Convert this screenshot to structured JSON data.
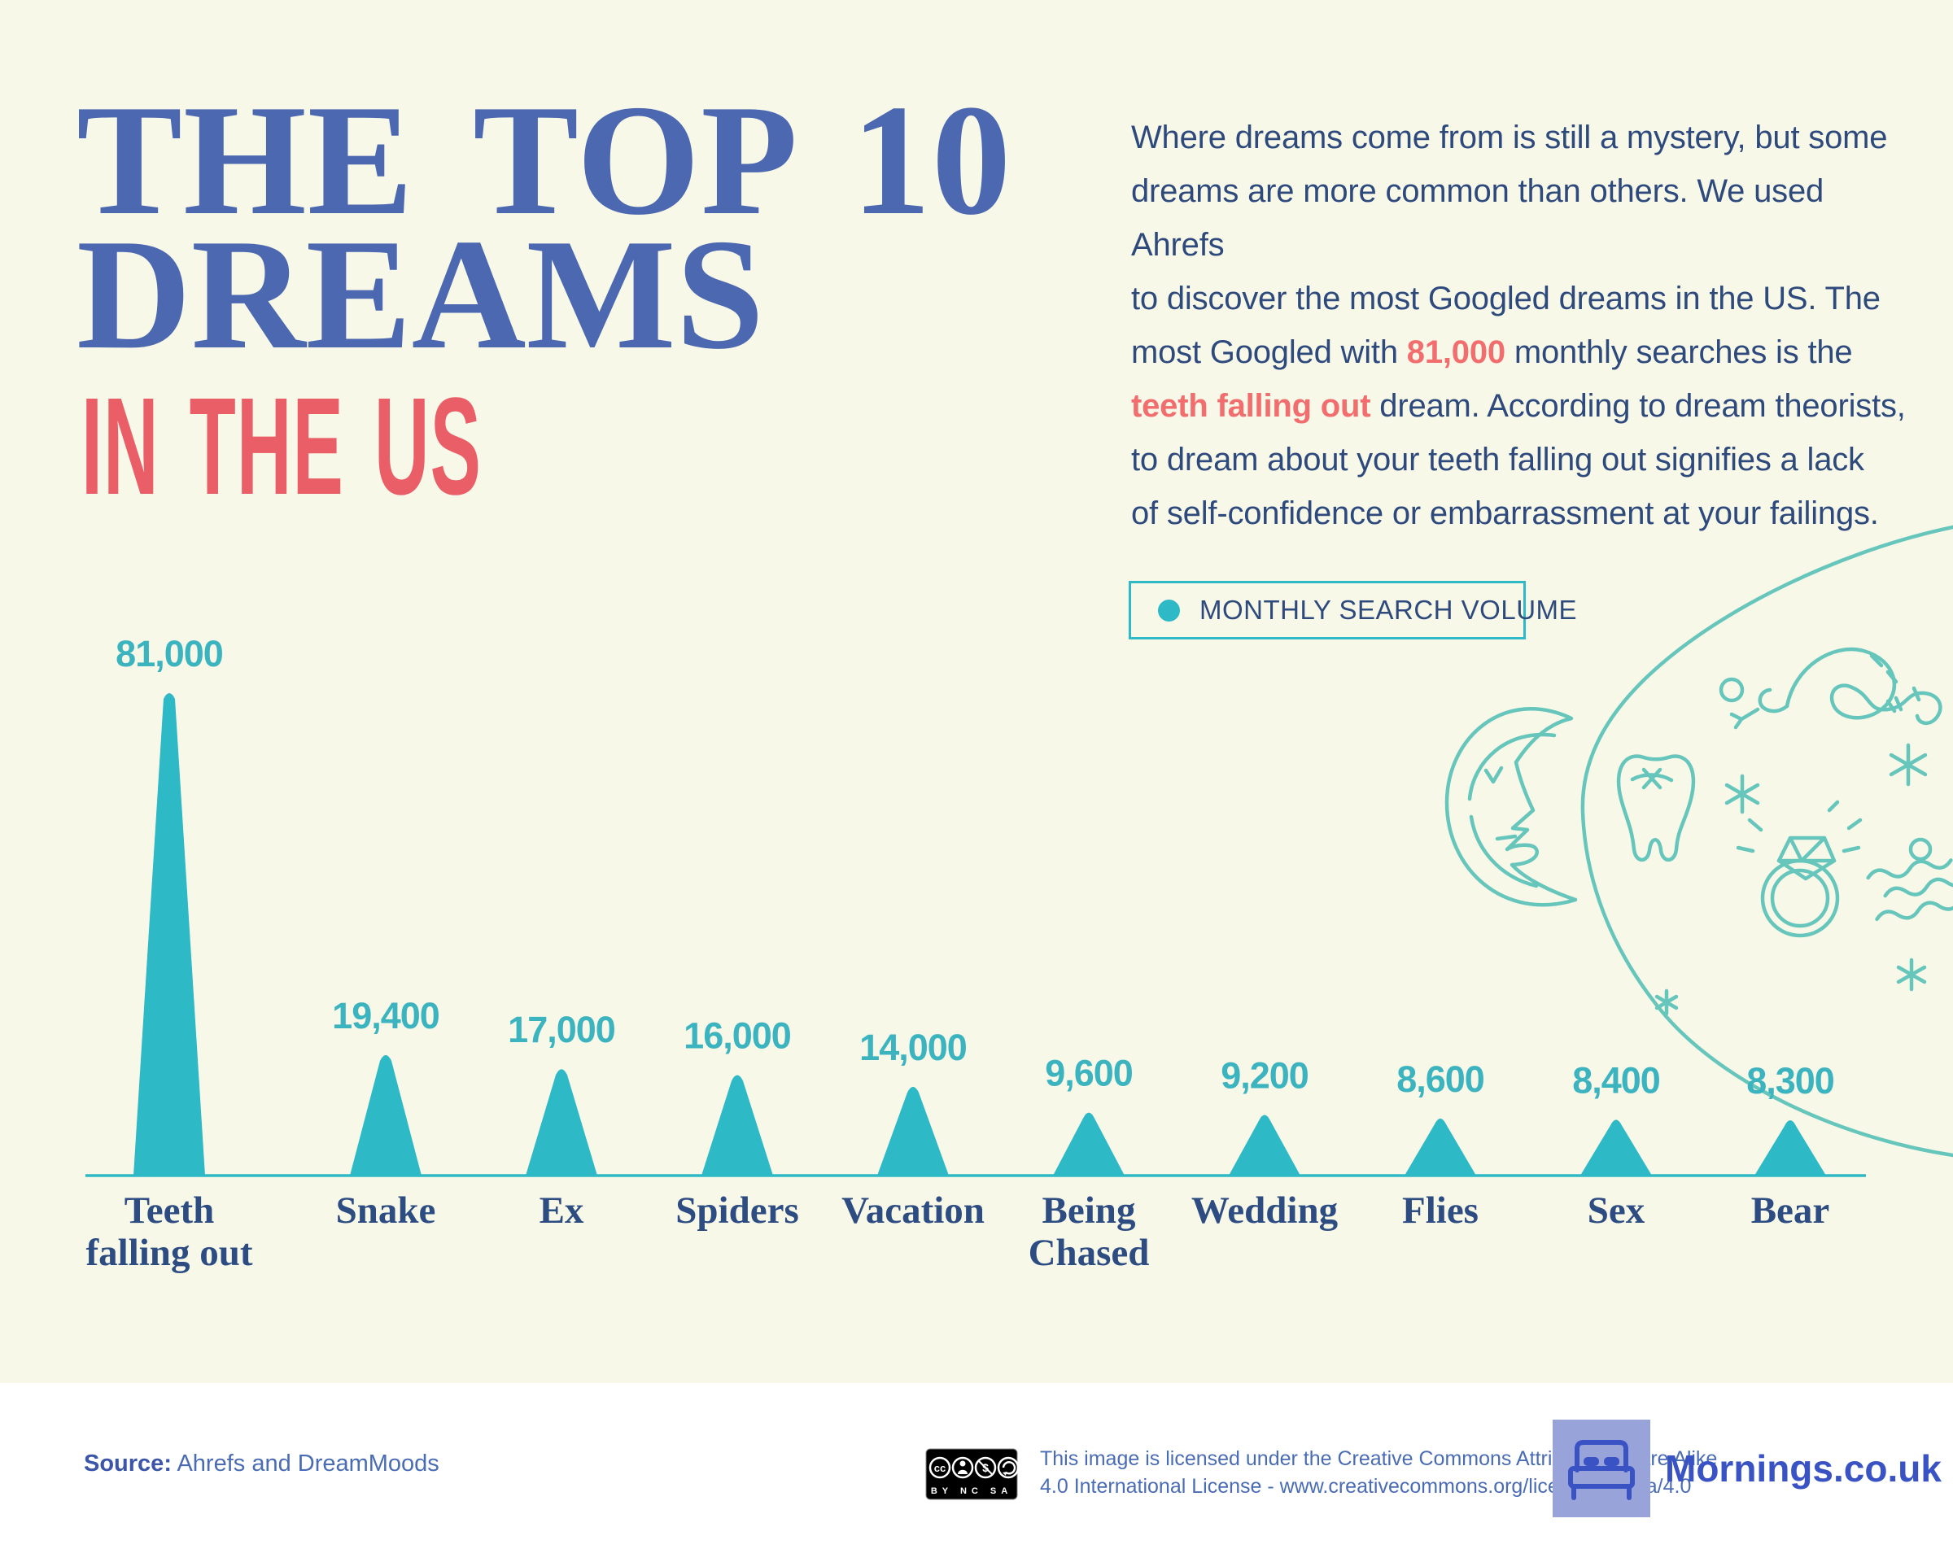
{
  "title": {
    "line1": "THE TOP 10",
    "line2": "DREAMS",
    "subtitle": "IN THE US"
  },
  "intro": {
    "lines": [
      [
        {
          "t": "Where dreams come from is still a mystery, but some"
        }
      ],
      [
        {
          "t": "dreams are more common than others. We used Ahrefs"
        }
      ],
      [
        {
          "t": "to discover the most Googled dreams in the US. The"
        }
      ],
      [
        {
          "t": "most Googled with "
        },
        {
          "t": "81,000",
          "hl": true
        },
        {
          "t": " monthly searches is the"
        }
      ],
      [
        {
          "t": "teeth falling out",
          "hl": true
        },
        {
          "t": " dream. According to dream theorists,"
        }
      ],
      [
        {
          "t": "to dream about your teeth falling out signifies a lack"
        }
      ],
      [
        {
          "t": "of self-confidence or embarrassment at your failings."
        }
      ]
    ]
  },
  "legend": {
    "label": "MONTHLY SEARCH VOLUME"
  },
  "chart_data": {
    "type": "area",
    "title": "The Top 10 Dreams in the US",
    "legend_entries": [
      "MONTHLY SEARCH VOLUME"
    ],
    "legend_position": "top-right",
    "unit": "monthly Google searches",
    "categories": [
      "Teeth falling out",
      "Snake",
      "Ex",
      "Spiders",
      "Vacation",
      "Being Chased",
      "Wedding",
      "Flies",
      "Sex",
      "Bear"
    ],
    "categories_lines": [
      [
        "Teeth",
        "falling out"
      ],
      [
        "Snake"
      ],
      [
        "Ex"
      ],
      [
        "Spiders"
      ],
      [
        "Vacation"
      ],
      [
        "Being",
        "Chased"
      ],
      [
        "Wedding"
      ],
      [
        "Flies"
      ],
      [
        "Sex"
      ],
      [
        "Bear"
      ]
    ],
    "values": [
      81000,
      19400,
      17000,
      16000,
      14000,
      9600,
      9200,
      8600,
      8400,
      8300
    ],
    "value_labels": [
      "81,000",
      "19,400",
      "17,000",
      "16,000",
      "14,000",
      "9,600",
      "9,200",
      "8,600",
      "8,400",
      "8,300"
    ],
    "ylim": [
      0,
      81000
    ],
    "grid": false,
    "colors": {
      "peak": "#2db9c5",
      "baseline": "#2db9c5",
      "value_label": "#3cb4bf",
      "category_label": "#2d4d82"
    }
  },
  "footer": {
    "source_label": "Source:",
    "source_text": " Ahrefs and DreamMoods",
    "license_line1": "This image is licensed under the Creative Commons Attribution-Share Alike",
    "license_line2": "4.0 International License - www.creativecommons.org/licenses/by-sa/4.0",
    "cc_sub": "BY NC SA",
    "brand": "Mornings.co.uk"
  },
  "colors": {
    "background": "#f8f8e9",
    "title_blue": "#4c68b0",
    "subtitle_red": "#ea5e68",
    "body_navy": "#2e4a7d",
    "highlight_red": "#f26d6d",
    "chart_teal": "#2db9c5",
    "lineart_teal": "#66c6bc",
    "footer_white": "#ffffff",
    "logo_square": "#98a3da",
    "brand_blue": "#3a53c4"
  }
}
